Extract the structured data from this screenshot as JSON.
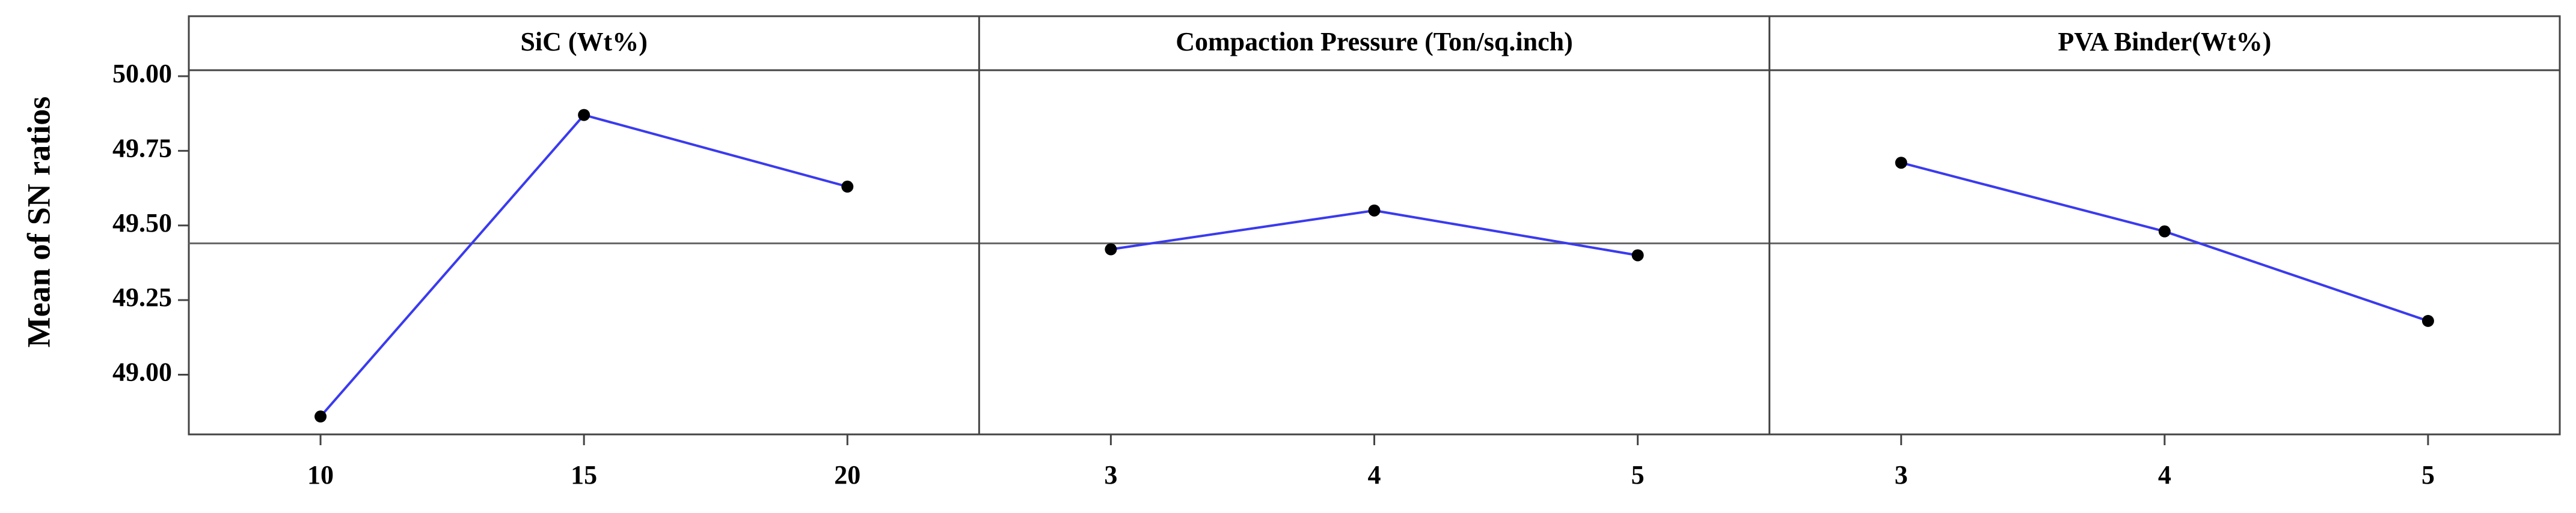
{
  "chart_data": {
    "type": "line",
    "ylabel": "Mean of SN ratios",
    "ylim": [
      48.8,
      50.02
    ],
    "yticks": [
      {
        "value": 49,
        "label": "49.00"
      },
      {
        "value": 49.25,
        "label": "49.25"
      },
      {
        "value": 49.5,
        "label": "49.50"
      },
      {
        "value": 49.75,
        "label": "49.75"
      },
      {
        "value": 50,
        "label": "50.00"
      }
    ],
    "reference_line": 49.44,
    "color": "#3a3af0",
    "marker_color": "#000000",
    "panels": [
      {
        "title": "SiC (Wt%)",
        "categories": [
          "10",
          "15",
          "20"
        ],
        "values": [
          48.86,
          49.87,
          49.63
        ]
      },
      {
        "title": "Compaction Pressure (Ton/sq.inch)",
        "categories": [
          "3",
          "4",
          "5"
        ],
        "values": [
          49.42,
          49.55,
          49.4
        ]
      },
      {
        "title": "PVA Binder(Wt%)",
        "categories": [
          "3",
          "4",
          "5"
        ],
        "values": [
          49.71,
          49.48,
          49.18
        ]
      }
    ]
  }
}
